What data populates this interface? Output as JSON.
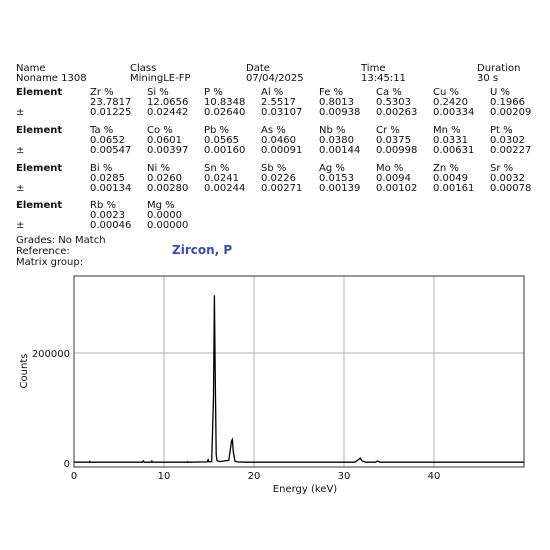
{
  "header": {
    "labels": [
      "Name",
      "Class",
      "Date",
      "Time",
      "Duration"
    ],
    "values": [
      "Noname 1308",
      "MiningLE-FP",
      "07/04/2025",
      "13:45:11",
      "30 s"
    ]
  },
  "element_label": "Element",
  "error_label": "±",
  "element_rows": [
    {
      "names": [
        "Zr %",
        "Si %",
        "P %",
        "Al %",
        "Fe %",
        "Ca %",
        "Cu %",
        "U %"
      ],
      "values": [
        "23.7817",
        "12.0656",
        "10.8348",
        "2.5517",
        "0.8013",
        "0.5303",
        "0.2420",
        "0.1966"
      ],
      "errors": [
        "0.01225",
        "0.02442",
        "0.02640",
        "0.03107",
        "0.00938",
        "0.00263",
        "0.00334",
        "0.00209"
      ]
    },
    {
      "names": [
        "Ta %",
        "Co %",
        "Pb %",
        "As %",
        "Nb %",
        "Cr %",
        "Mn %",
        "Pt %"
      ],
      "values": [
        "0.0652",
        "0.0601",
        "0.0565",
        "0.0460",
        "0.0380",
        "0.0375",
        "0.0331",
        "0.0302"
      ],
      "errors": [
        "0.00547",
        "0.00397",
        "0.00160",
        "0.00091",
        "0.00144",
        "0.00998",
        "0.00631",
        "0.00227"
      ]
    },
    {
      "names": [
        "Bi %",
        "Ni %",
        "Sn %",
        "Sb %",
        "Ag %",
        "Mo %",
        "Zn %",
        "Sr %"
      ],
      "values": [
        "0.0285",
        "0.0260",
        "0.0241",
        "0.0226",
        "0.0153",
        "0.0094",
        "0.0049",
        "0.0032"
      ],
      "errors": [
        "0.00134",
        "0.00280",
        "0.00244",
        "0.00271",
        "0.00139",
        "0.00102",
        "0.00161",
        "0.00078"
      ]
    },
    {
      "names": [
        "Rb %",
        "Mg %"
      ],
      "values": [
        "0.0023",
        "0.0000"
      ],
      "errors": [
        "0.00046",
        "0.00000"
      ]
    }
  ],
  "footer": {
    "grades": "Grades: No Match",
    "reference_label": "Reference:",
    "reference_value": "Zircon, P",
    "matrix_label": "Matrix group:"
  },
  "colors": {
    "reference_text": "#3a4bb8",
    "grid": "#b0b0b0",
    "trace": "#000000"
  },
  "chart_data": {
    "type": "line",
    "xlabel": "Energy (keV)",
    "ylabel": "Counts",
    "xlim": [
      0,
      50
    ],
    "ylim": [
      0,
      340000
    ],
    "x_ticks": [
      0,
      10,
      20,
      30,
      40
    ],
    "y_ticks": [
      0,
      200000
    ],
    "grid": true,
    "series": [
      {
        "x": [
          0,
          1.7,
          1.75,
          1.8,
          2.0,
          7.6,
          7.7,
          7.8,
          8.0,
          8.6,
          8.65,
          8.7,
          9.0,
          12.6,
          12.65,
          12.7,
          13.0,
          14.8,
          14.9,
          15.0,
          15.3,
          15.5,
          15.6,
          15.7,
          15.8,
          15.9,
          16.2,
          17.2,
          17.5,
          17.6,
          17.7,
          17.9,
          18.2,
          19.0,
          31.2,
          31.6,
          31.8,
          32.0,
          32.4,
          33.5,
          33.7,
          34.0,
          50
        ],
        "y": [
          1500,
          1500,
          3000,
          1500,
          1500,
          1500,
          4000,
          1500,
          1500,
          1500,
          3500,
          1500,
          1500,
          1500,
          2500,
          1500,
          1500,
          2000,
          6000,
          2000,
          2500,
          120000,
          305000,
          150000,
          15000,
          4000,
          2500,
          5000,
          40000,
          43000,
          20000,
          3000,
          2000,
          1500,
          1500,
          6000,
          9000,
          4000,
          1500,
          1500,
          3500,
          1500,
          1500
        ]
      }
    ]
  }
}
